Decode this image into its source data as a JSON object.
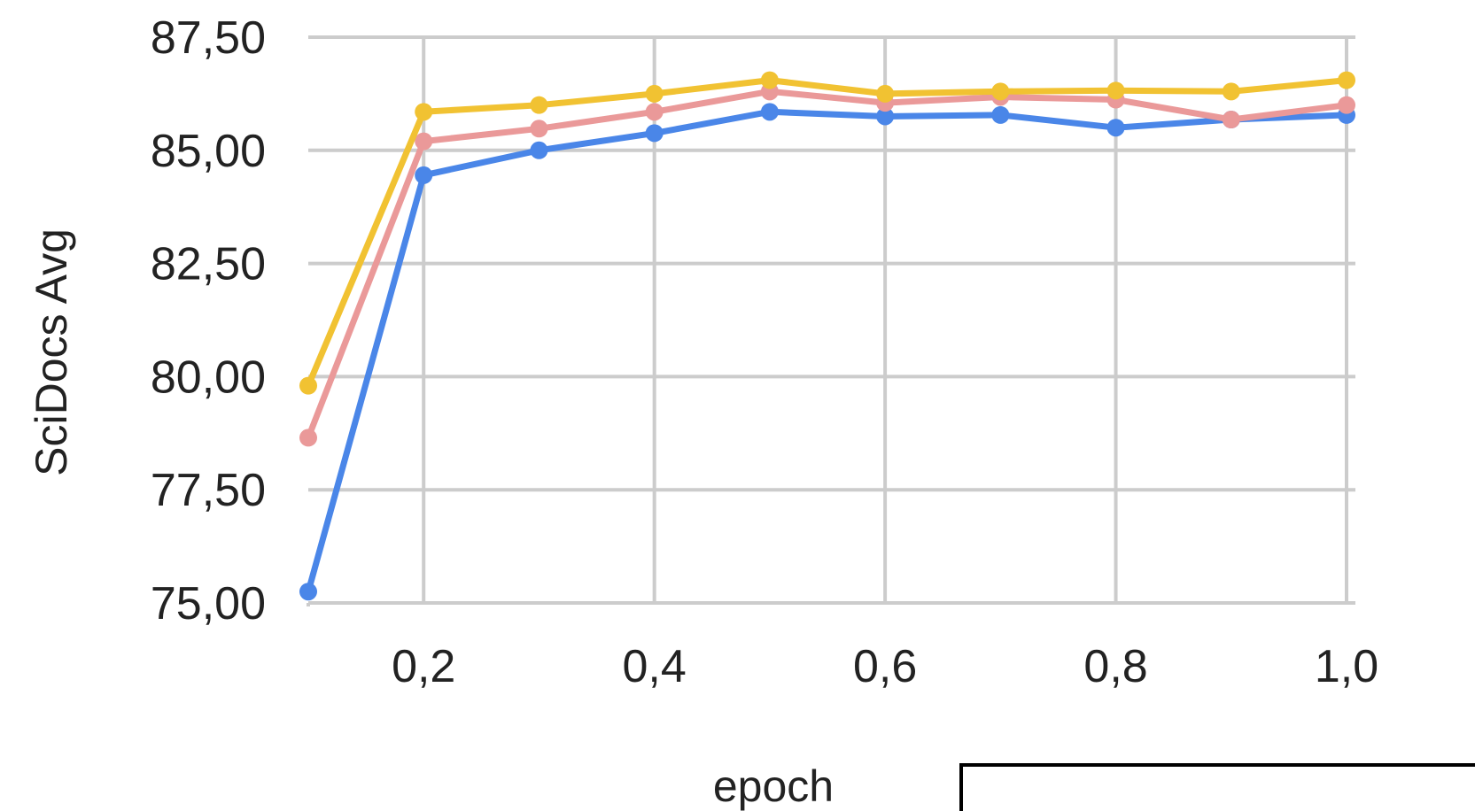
{
  "chart_data": {
    "type": "line",
    "title": "",
    "xlabel": "epoch",
    "ylabel": "SciDocs Avg",
    "x": [
      0.1,
      0.2,
      0.3,
      0.4,
      0.5,
      0.6,
      0.7,
      0.8,
      0.9,
      1.0
    ],
    "xlim": [
      0.1,
      1.0
    ],
    "ylim": [
      75.0,
      87.5
    ],
    "x_ticks": [
      {
        "value": 0.2,
        "label": "0,2"
      },
      {
        "value": 0.4,
        "label": "0,4"
      },
      {
        "value": 0.6,
        "label": "0,6"
      },
      {
        "value": 0.8,
        "label": "0,8"
      },
      {
        "value": 1.0,
        "label": "1,0"
      }
    ],
    "y_ticks": [
      {
        "value": 75.0,
        "label": "75,00"
      },
      {
        "value": 77.5,
        "label": "77,50"
      },
      {
        "value": 80.0,
        "label": "80,00"
      },
      {
        "value": 82.5,
        "label": "82,50"
      },
      {
        "value": 85.0,
        "label": "85,00"
      },
      {
        "value": 87.5,
        "label": "87,50"
      }
    ],
    "grid": true,
    "series": [
      {
        "color": "#4a86e8",
        "values": [
          75.25,
          84.45,
          85.0,
          85.38,
          85.85,
          85.75,
          85.78,
          85.5,
          85.68,
          85.78
        ]
      },
      {
        "color": "#ea9999",
        "values": [
          78.65,
          85.2,
          85.48,
          85.85,
          86.3,
          86.05,
          86.18,
          86.12,
          85.68,
          86.0
        ]
      },
      {
        "color": "#f1c232",
        "values": [
          79.8,
          85.85,
          86.0,
          86.25,
          86.55,
          86.25,
          86.3,
          86.32,
          86.3,
          86.55
        ]
      }
    ],
    "grid_color": "#cccccc"
  }
}
